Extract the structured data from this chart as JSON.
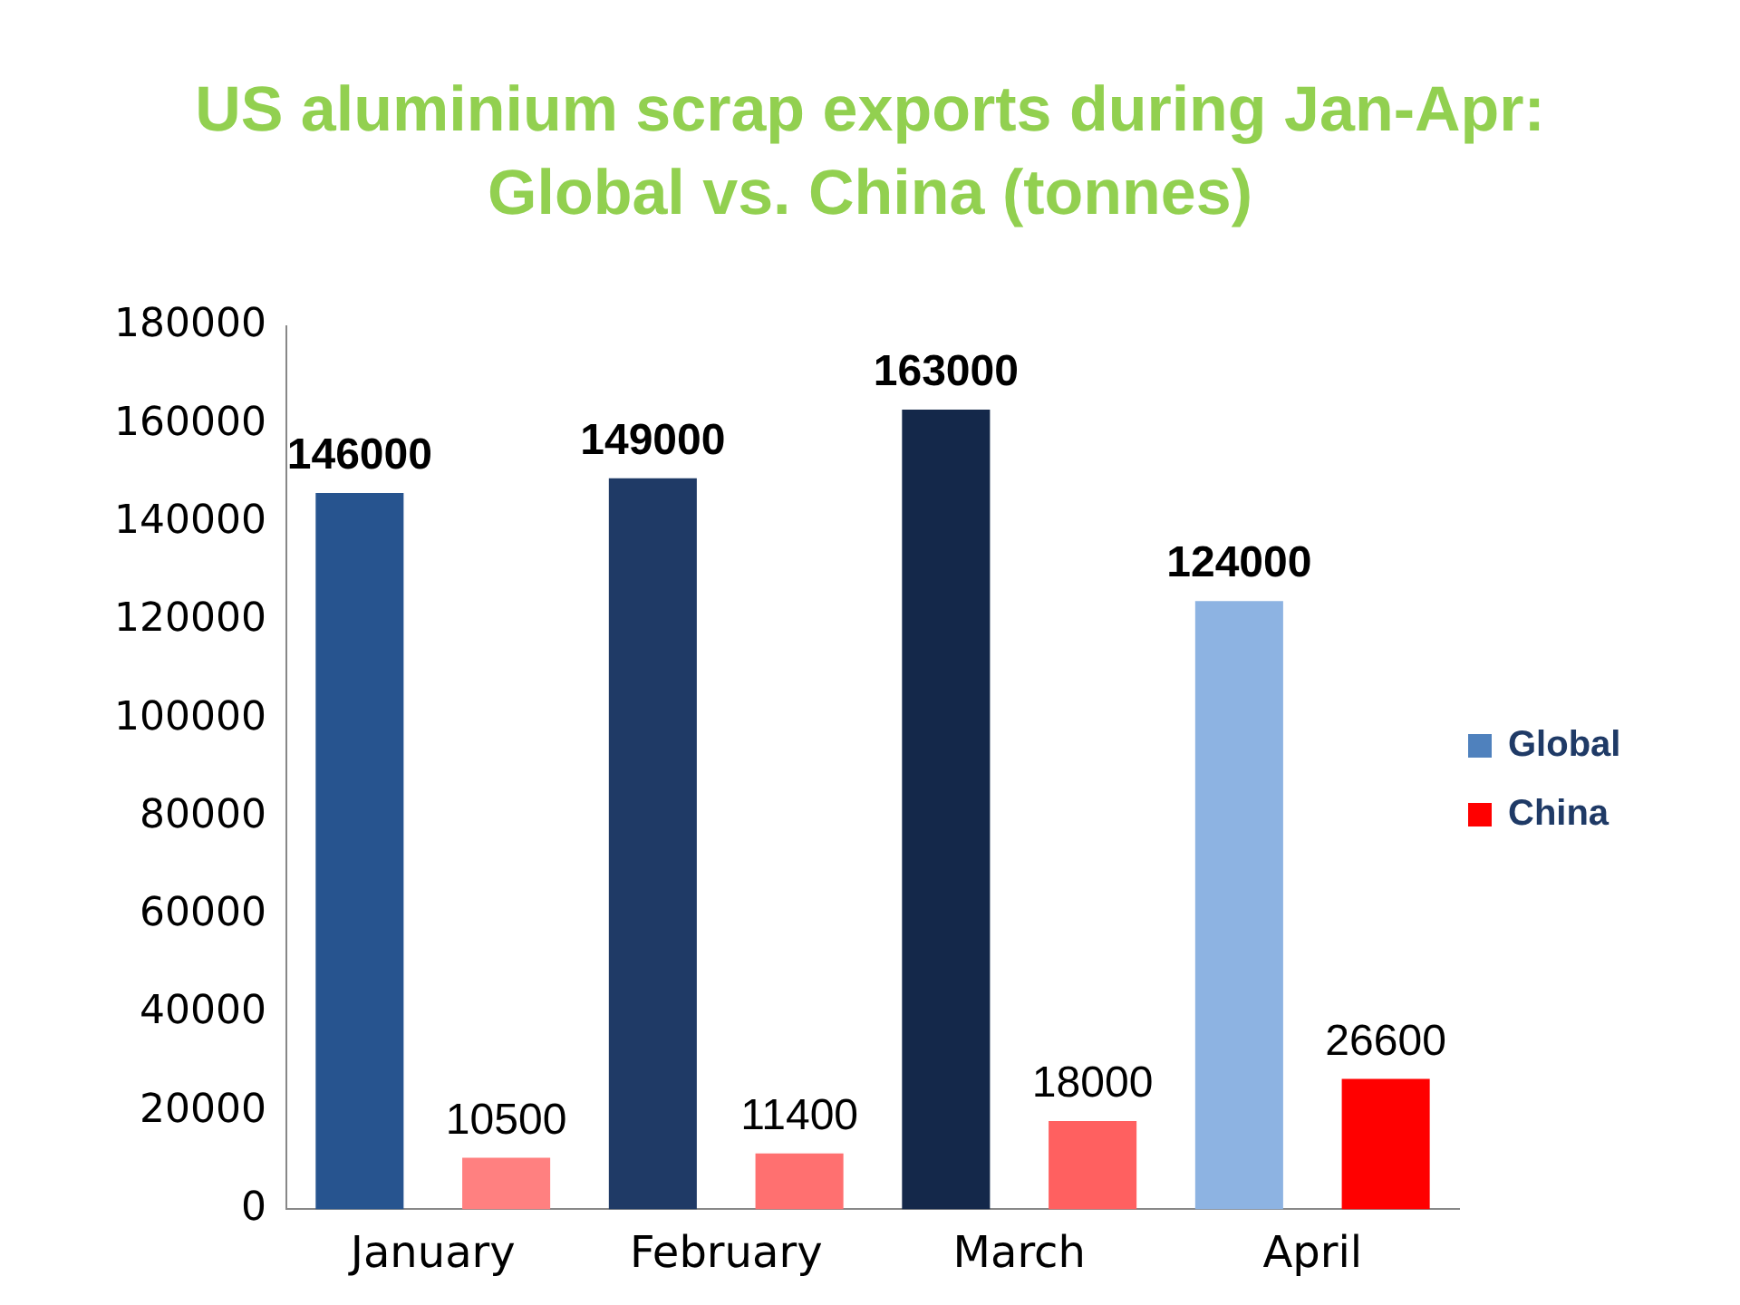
{
  "chart_data": {
    "type": "bar",
    "title": "US aluminium scrap exports during Jan-Apr: Global vs. China (tonnes)",
    "categories": [
      "January",
      "February",
      "March",
      "April"
    ],
    "series": [
      {
        "name": "Global",
        "color": "#4f81bd",
        "colors": [
          "#27548f",
          "#1f3a66",
          "#14284a",
          "#8db3e2"
        ],
        "values": [
          146000,
          149000,
          163000,
          124000
        ]
      },
      {
        "name": "China",
        "color": "#ff0000",
        "colors": [
          "#ff8080",
          "#ff7070",
          "#ff6060",
          "#ff0000"
        ],
        "values": [
          10500,
          11400,
          18000,
          26600
        ]
      }
    ],
    "ylim": [
      0,
      180000
    ],
    "yticks": [
      0,
      20000,
      40000,
      60000,
      80000,
      100000,
      120000,
      140000,
      160000,
      180000
    ],
    "grid": false,
    "legend": "right",
    "data_labels": true
  }
}
